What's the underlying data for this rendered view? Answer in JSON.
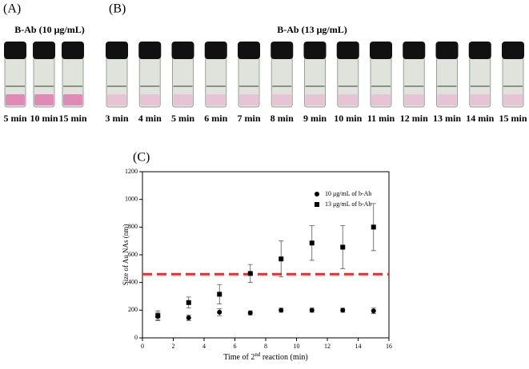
{
  "panel_a": {
    "label": "(A)",
    "title": "B-Ab (10 μg/mL)",
    "vials": [
      "5 min",
      "10 min",
      "15 min"
    ]
  },
  "panel_b": {
    "label": "(B)",
    "title": "B-Ab (13 μg/mL)",
    "vials": [
      "3 min",
      "4 min",
      "5 min",
      "6 min",
      "7 min",
      "8 min",
      "9 min",
      "10 min",
      "11 min",
      "12 min",
      "13 min",
      "14 min",
      "15 min"
    ]
  },
  "chart_data": {
    "type": "scatter",
    "label": "(C)",
    "xlabel": [
      "Time of 2",
      "nd",
      " reaction (min)"
    ],
    "ylabel": "Size of Au NAs (nm)",
    "x": [
      1,
      3,
      5,
      7,
      9,
      11,
      13,
      15
    ],
    "series": [
      {
        "name": "10 μg/mL of b-Ab",
        "marker": "circle",
        "color": "#000000",
        "values": [
          155,
          145,
          185,
          180,
          200,
          200,
          200,
          195
        ],
        "errors": [
          25,
          20,
          25,
          15,
          15,
          15,
          15,
          20
        ]
      },
      {
        "name": "13 μg/mL of b-Ab",
        "marker": "square",
        "color": "#000000",
        "values": [
          160,
          255,
          315,
          465,
          570,
          685,
          655,
          800
        ],
        "errors": [
          35,
          40,
          70,
          65,
          130,
          125,
          155,
          170
        ]
      }
    ],
    "reference_line": {
      "value": 460,
      "color": "#e03030"
    },
    "xlim": [
      0,
      16
    ],
    "xticks": [
      0,
      2,
      4,
      6,
      8,
      10,
      12,
      14,
      16
    ],
    "ylim": [
      0,
      1200
    ],
    "yticks": [
      0,
      200,
      400,
      600,
      800,
      1000,
      1200
    ],
    "legend": "top-right"
  }
}
